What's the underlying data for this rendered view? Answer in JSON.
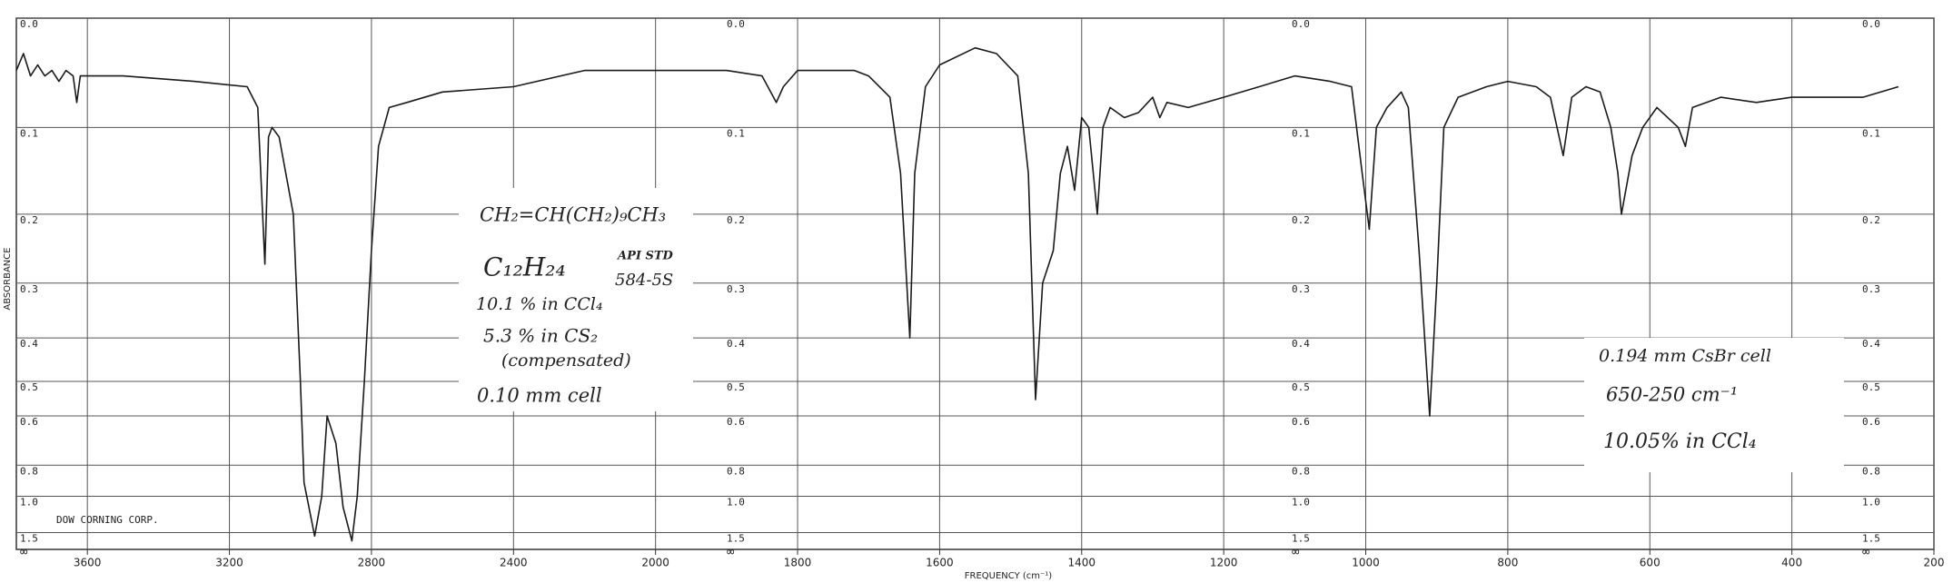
{
  "chart_data": {
    "type": "line",
    "x_label": "FREQUENCY (cm⁻¹)",
    "y_label": "ABSORBANCE",
    "yscale": "absorbance",
    "grid": true,
    "color": "#1a1a1a",
    "xlim": [
      3800,
      200
    ],
    "xticks": [
      3600,
      3200,
      2800,
      2400,
      2000,
      1800,
      1600,
      1400,
      1200,
      1000,
      800,
      600,
      400,
      200
    ],
    "ylim": [
      0,
      "∞"
    ],
    "yticks": [
      {
        "value": 0,
        "label": "0.0"
      },
      0.1,
      0.2,
      0.3,
      0.4,
      0.5,
      0.6,
      0.8,
      {
        "value": 1,
        "label": "1.0"
      },
      1.5
    ],
    "x": [
      3800,
      3780,
      3760,
      3740,
      3720,
      3700,
      3680,
      3660,
      3640,
      3630,
      3620,
      3500,
      3300,
      3150,
      3120,
      3100,
      3090,
      3080,
      3060,
      3020,
      3000,
      2990,
      2960,
      2940,
      2925,
      2900,
      2880,
      2855,
      2840,
      2820,
      2800,
      2780,
      2750,
      2700,
      2600,
      2400,
      2200,
      2000,
      1900,
      1850,
      1830,
      1820,
      1800,
      1720,
      1700,
      1670,
      1655,
      1642,
      1635,
      1620,
      1600,
      1550,
      1520,
      1490,
      1475,
      1465,
      1455,
      1440,
      1430,
      1420,
      1410,
      1400,
      1390,
      1378,
      1370,
      1360,
      1340,
      1320,
      1300,
      1290,
      1280,
      1250,
      1200,
      1150,
      1100,
      1050,
      1020,
      1005,
      995,
      985,
      970,
      950,
      940,
      925,
      910,
      900,
      890,
      870,
      830,
      800,
      760,
      740,
      722,
      710,
      690,
      670,
      655,
      645,
      640,
      625,
      610,
      590,
      560,
      550,
      540,
      500,
      450,
      400,
      300,
      250
    ],
    "values": [
      0.045,
      0.03,
      0.05,
      0.04,
      0.05,
      0.045,
      0.055,
      0.045,
      0.05,
      0.075,
      0.05,
      0.05,
      0.055,
      0.06,
      0.08,
      0.27,
      0.11,
      0.1,
      0.11,
      0.2,
      0.5,
      0.9,
      1.6,
      1.0,
      0.6,
      0.7,
      1.1,
      1.8,
      1.0,
      0.5,
      0.25,
      0.12,
      0.08,
      0.075,
      0.065,
      0.06,
      0.045,
      0.045,
      0.045,
      0.05,
      0.075,
      0.06,
      0.045,
      0.045,
      0.05,
      0.07,
      0.15,
      0.4,
      0.15,
      0.06,
      0.04,
      0.025,
      0.03,
      0.05,
      0.15,
      0.55,
      0.3,
      0.25,
      0.15,
      0.12,
      0.17,
      0.09,
      0.1,
      0.2,
      0.1,
      0.08,
      0.09,
      0.085,
      0.07,
      0.09,
      0.075,
      0.08,
      0.07,
      0.06,
      0.05,
      0.055,
      0.06,
      0.15,
      0.22,
      0.1,
      0.08,
      0.065,
      0.08,
      0.25,
      0.6,
      0.3,
      0.1,
      0.07,
      0.06,
      0.055,
      0.06,
      0.07,
      0.13,
      0.07,
      0.06,
      0.065,
      0.1,
      0.15,
      0.2,
      0.13,
      0.1,
      0.08,
      0.1,
      0.12,
      0.08,
      0.07,
      0.075,
      0.07,
      0.07,
      0.06
    ],
    "annotations": [
      "CH₂=CH(CH₂)₉CH₃",
      "C₁₂H₂₄",
      "API STD",
      "584-5S",
      "10.1 % in CCl₄",
      "5.3 % in CS₂",
      "(compensated)",
      "0.10 mm cell",
      "0.194 mm CsBr cell",
      "650-250 cm⁻¹",
      "10.05% in CCl₄",
      "DOW CORNING CORP."
    ]
  }
}
